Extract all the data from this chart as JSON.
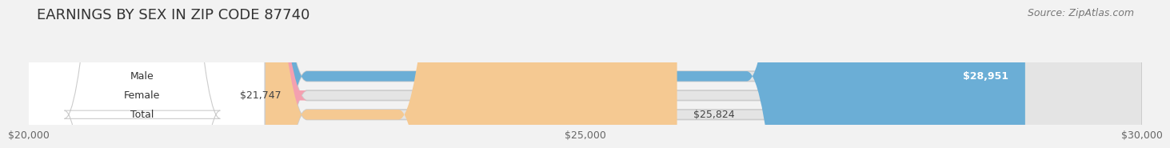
{
  "title": "EARNINGS BY SEX IN ZIP CODE 87740",
  "source": "Source: ZipAtlas.com",
  "categories": [
    "Male",
    "Female",
    "Total"
  ],
  "values": [
    28951,
    21747,
    25824
  ],
  "bar_colors": [
    "#6baed6",
    "#f4a0b0",
    "#f5c992"
  ],
  "value_label_inside": [
    true,
    false,
    false
  ],
  "bar_labels": [
    "$28,951",
    "$21,747",
    "$25,824"
  ],
  "xlim_min": 20000,
  "xlim_max": 30000,
  "xticks": [
    20000,
    25000,
    30000
  ],
  "xtick_labels": [
    "$20,000",
    "$25,000",
    "$30,000"
  ],
  "background_color": "#f2f2f2",
  "bar_background_color": "#e4e4e4",
  "title_fontsize": 13,
  "label_fontsize": 9,
  "tick_fontsize": 9,
  "source_fontsize": 9
}
